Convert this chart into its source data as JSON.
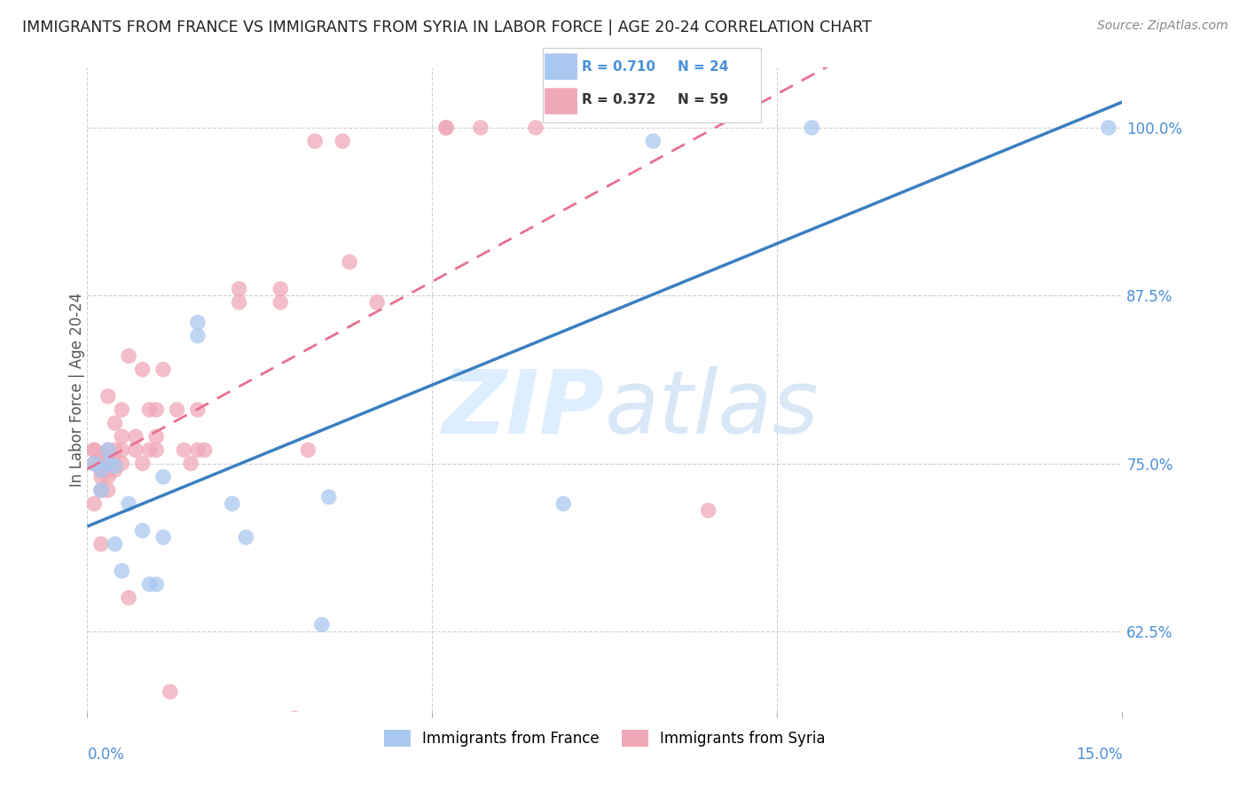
{
  "title": "IMMIGRANTS FROM FRANCE VS IMMIGRANTS FROM SYRIA IN LABOR FORCE | AGE 20-24 CORRELATION CHART",
  "source": "Source: ZipAtlas.com",
  "ylabel": "In Labor Force | Age 20-24",
  "ytick_labels": [
    "62.5%",
    "75.0%",
    "87.5%",
    "100.0%"
  ],
  "ytick_values": [
    0.625,
    0.75,
    0.875,
    1.0
  ],
  "xlim": [
    0.0,
    0.15
  ],
  "ylim": [
    0.565,
    1.045
  ],
  "france_R": "0.710",
  "france_N": "24",
  "syria_R": "0.372",
  "syria_N": "59",
  "france_color": "#a8c8f0",
  "syria_color": "#f0a8b8",
  "france_line_color": "#3a7fc1",
  "syria_line_color": "#e87090",
  "france_scatter_x": [
    0.001,
    0.002,
    0.002,
    0.003,
    0.003,
    0.004,
    0.004,
    0.005,
    0.006,
    0.008,
    0.009,
    0.01,
    0.011,
    0.011,
    0.016,
    0.016,
    0.021,
    0.023,
    0.034,
    0.035,
    0.069,
    0.082,
    0.105,
    0.148
  ],
  "france_scatter_y": [
    0.75,
    0.73,
    0.745,
    0.75,
    0.76,
    0.748,
    0.69,
    0.67,
    0.72,
    0.7,
    0.66,
    0.66,
    0.74,
    0.695,
    0.845,
    0.855,
    0.72,
    0.695,
    0.63,
    0.725,
    0.72,
    0.99,
    1.0,
    1.0
  ],
  "syria_scatter_x": [
    0.001,
    0.001,
    0.001,
    0.001,
    0.002,
    0.002,
    0.002,
    0.002,
    0.002,
    0.002,
    0.003,
    0.003,
    0.003,
    0.003,
    0.003,
    0.003,
    0.003,
    0.004,
    0.004,
    0.004,
    0.004,
    0.005,
    0.005,
    0.005,
    0.005,
    0.006,
    0.006,
    0.007,
    0.007,
    0.008,
    0.008,
    0.009,
    0.009,
    0.01,
    0.01,
    0.01,
    0.011,
    0.012,
    0.013,
    0.014,
    0.015,
    0.016,
    0.016,
    0.017,
    0.022,
    0.022,
    0.028,
    0.028,
    0.03,
    0.032,
    0.033,
    0.037,
    0.038,
    0.042,
    0.052,
    0.052,
    0.057,
    0.065,
    0.09
  ],
  "syria_scatter_y": [
    0.75,
    0.76,
    0.76,
    0.72,
    0.75,
    0.755,
    0.745,
    0.74,
    0.73,
    0.69,
    0.75,
    0.755,
    0.745,
    0.74,
    0.76,
    0.73,
    0.8,
    0.745,
    0.75,
    0.76,
    0.78,
    0.76,
    0.75,
    0.79,
    0.77,
    0.83,
    0.65,
    0.76,
    0.77,
    0.75,
    0.82,
    0.79,
    0.76,
    0.77,
    0.76,
    0.79,
    0.82,
    0.58,
    0.79,
    0.76,
    0.75,
    0.76,
    0.79,
    0.76,
    0.87,
    0.88,
    0.87,
    0.88,
    0.56,
    0.76,
    0.99,
    0.99,
    0.9,
    0.87,
    1.0,
    1.0,
    1.0,
    1.0,
    0.715
  ],
  "legend_france_label": "Immigrants from France",
  "legend_syria_label": "Immigrants from Syria"
}
